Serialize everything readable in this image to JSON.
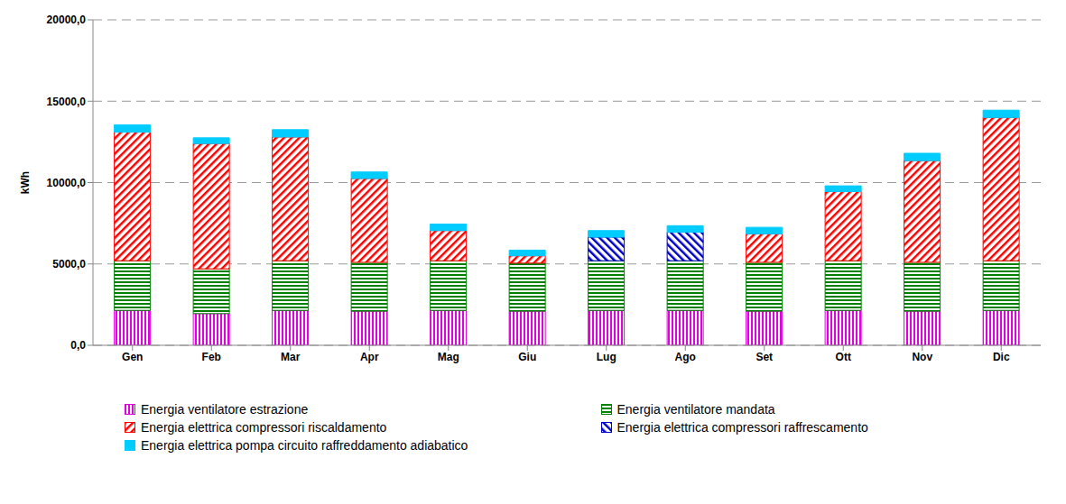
{
  "chart_data": {
    "type": "bar",
    "stacked": true,
    "grid": true,
    "legend": "bottom",
    "ylabel": "kWh",
    "categories": [
      "Gen",
      "Feb",
      "Mar",
      "Apr",
      "Mag",
      "Giu",
      "Lug",
      "Ago",
      "Set",
      "Ott",
      "Nov",
      "Dic"
    ],
    "ylim": [
      0,
      20000
    ],
    "yticks": [
      {
        "value": 0,
        "label": "0,0"
      },
      {
        "value": 5000,
        "label": "5000,0"
      },
      {
        "value": 10000,
        "label": "10000,0"
      },
      {
        "value": 15000,
        "label": "15000,0"
      },
      {
        "value": 20000,
        "label": "20000,0"
      }
    ],
    "series": [
      {
        "name": "Energia ventilatore estrazione",
        "color": "#e000e0",
        "values": [
          2150,
          1950,
          2150,
          2100,
          2150,
          2100,
          2150,
          2150,
          2100,
          2150,
          2100,
          2150
        ]
      },
      {
        "name": "Energia ventilatore mandata",
        "color": "#008000",
        "values": [
          3050,
          2750,
          3050,
          3000,
          3050,
          2950,
          3050,
          3050,
          3000,
          3050,
          3000,
          3050
        ]
      },
      {
        "name": "Energia elettrica compressori riscaldamento",
        "color": "#ff0000",
        "values": [
          7900,
          7700,
          7600,
          5150,
          1850,
          450,
          0,
          0,
          1750,
          4250,
          6250,
          8800
        ]
      },
      {
        "name": "Energia elettrica compressori raffrescamento",
        "color": "#0000c0",
        "values": [
          0,
          0,
          0,
          0,
          0,
          0,
          1450,
          1750,
          0,
          0,
          0,
          0
        ]
      },
      {
        "name": "Energia elettrica pompa circuito raffreddamento adiabatico",
        "color": "#00ccff",
        "values": [
          450,
          350,
          450,
          400,
          400,
          350,
          400,
          400,
          400,
          350,
          450,
          450
        ]
      }
    ]
  }
}
